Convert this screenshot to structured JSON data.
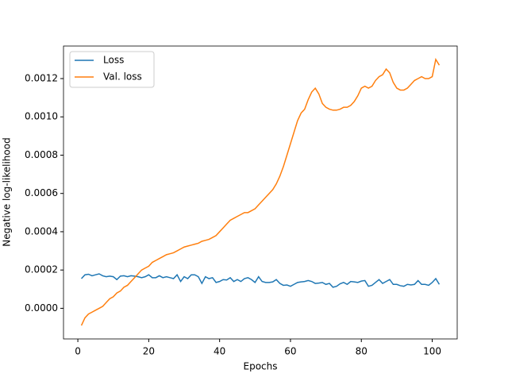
{
  "chart_data": {
    "type": "line",
    "x_label": "Epochs",
    "y_label": "Negative log-likelihood",
    "x": [
      1,
      2,
      3,
      4,
      5,
      6,
      7,
      8,
      9,
      10,
      11,
      12,
      13,
      14,
      15,
      16,
      17,
      18,
      19,
      20,
      21,
      22,
      23,
      24,
      25,
      26,
      27,
      28,
      29,
      30,
      31,
      32,
      33,
      34,
      35,
      36,
      37,
      38,
      39,
      40,
      41,
      42,
      43,
      44,
      45,
      46,
      47,
      48,
      49,
      50,
      51,
      52,
      53,
      54,
      55,
      56,
      57,
      58,
      59,
      60,
      61,
      62,
      63,
      64,
      65,
      66,
      67,
      68,
      69,
      70,
      71,
      72,
      73,
      74,
      75,
      76,
      77,
      78,
      79,
      80,
      81,
      82,
      83,
      84,
      85,
      86,
      87,
      88,
      89,
      90,
      91,
      92,
      93,
      94,
      95,
      96,
      97,
      98,
      99,
      100,
      101,
      102
    ],
    "series": [
      {
        "name": "Loss",
        "color": "#1f77b4",
        "values": [
          0.000155,
          0.000175,
          0.000178,
          0.00017,
          0.000175,
          0.00018,
          0.00017,
          0.000165,
          0.000168,
          0.000165,
          0.00015,
          0.000168,
          0.00017,
          0.000165,
          0.00017,
          0.000168,
          0.000165,
          0.00016,
          0.000165,
          0.000175,
          0.00016,
          0.00016,
          0.00017,
          0.00016,
          0.000165,
          0.00016,
          0.000155,
          0.000175,
          0.00014,
          0.000165,
          0.000155,
          0.000175,
          0.000175,
          0.000165,
          0.00013,
          0.000165,
          0.000155,
          0.00016,
          0.000135,
          0.00014,
          0.00015,
          0.000148,
          0.00016,
          0.00014,
          0.00015,
          0.00014,
          0.000155,
          0.00016,
          0.00015,
          0.000135,
          0.000165,
          0.00014,
          0.000135,
          0.000135,
          0.000138,
          0.00015,
          0.00013,
          0.00012,
          0.000122,
          0.000115,
          0.000125,
          0.000135,
          0.000138,
          0.00014,
          0.000145,
          0.00014,
          0.00013,
          0.000132,
          0.000135,
          0.000125,
          0.00013,
          0.00011,
          0.000115,
          0.000128,
          0.000135,
          0.000125,
          0.00014,
          0.000138,
          0.000135,
          0.000142,
          0.000145,
          0.000115,
          0.00012,
          0.000135,
          0.00015,
          0.00013,
          0.00014,
          0.00015,
          0.000125,
          0.000125,
          0.000118,
          0.000115,
          0.000125,
          0.000122,
          0.000125,
          0.000145,
          0.000125,
          0.000125,
          0.00012,
          0.000135,
          0.000155,
          0.000125
        ]
      },
      {
        "name": "Val. loss",
        "color": "#ff7f0e",
        "values": [
          -9e-05,
          -5e-05,
          -3e-05,
          -2e-05,
          -1e-05,
          0.0,
          1e-05,
          3e-05,
          5e-05,
          6e-05,
          8e-05,
          9e-05,
          0.00011,
          0.00012,
          0.00014,
          0.00016,
          0.00018,
          0.0002,
          0.00021,
          0.00022,
          0.00024,
          0.00025,
          0.00026,
          0.00027,
          0.00028,
          0.000285,
          0.00029,
          0.0003,
          0.00031,
          0.00032,
          0.000325,
          0.00033,
          0.000335,
          0.00034,
          0.00035,
          0.000355,
          0.00036,
          0.00037,
          0.00038,
          0.0004,
          0.00042,
          0.00044,
          0.00046,
          0.00047,
          0.00048,
          0.00049,
          0.0005,
          0.0005,
          0.00051,
          0.00052,
          0.00054,
          0.00056,
          0.00058,
          0.0006,
          0.00062,
          0.00065,
          0.00069,
          0.00074,
          0.0008,
          0.00086,
          0.00092,
          0.00098,
          0.00102,
          0.00104,
          0.00109,
          0.00113,
          0.00115,
          0.00112,
          0.00107,
          0.00105,
          0.00104,
          0.001035,
          0.001035,
          0.00104,
          0.00105,
          0.00105,
          0.00106,
          0.00108,
          0.00111,
          0.00115,
          0.00116,
          0.00115,
          0.00116,
          0.00119,
          0.00121,
          0.00122,
          0.00125,
          0.00123,
          0.00118,
          0.00115,
          0.00114,
          0.00114,
          0.00115,
          0.00117,
          0.00119,
          0.0012,
          0.00121,
          0.0012,
          0.0012,
          0.00121,
          0.0013,
          0.00127
        ]
      }
    ],
    "xlim": [
      -4.05,
      107.05
    ],
    "ylim": [
      -0.00016,
      0.00137
    ],
    "xticks": [
      0,
      20,
      40,
      60,
      80,
      100
    ],
    "yticks": [
      {
        "value": 0,
        "label": "0.0000"
      },
      {
        "value": 0.0002,
        "label": "0.0002"
      },
      {
        "value": 0.0004,
        "label": "0.0004"
      },
      {
        "value": 0.0006,
        "label": "0.0006"
      },
      {
        "value": 0.0008,
        "label": "0.0008"
      },
      {
        "value": 0.001,
        "label": "0.0010"
      },
      {
        "value": 0.0012,
        "label": "0.0012"
      }
    ],
    "legend": "upper left",
    "grid": false
  }
}
